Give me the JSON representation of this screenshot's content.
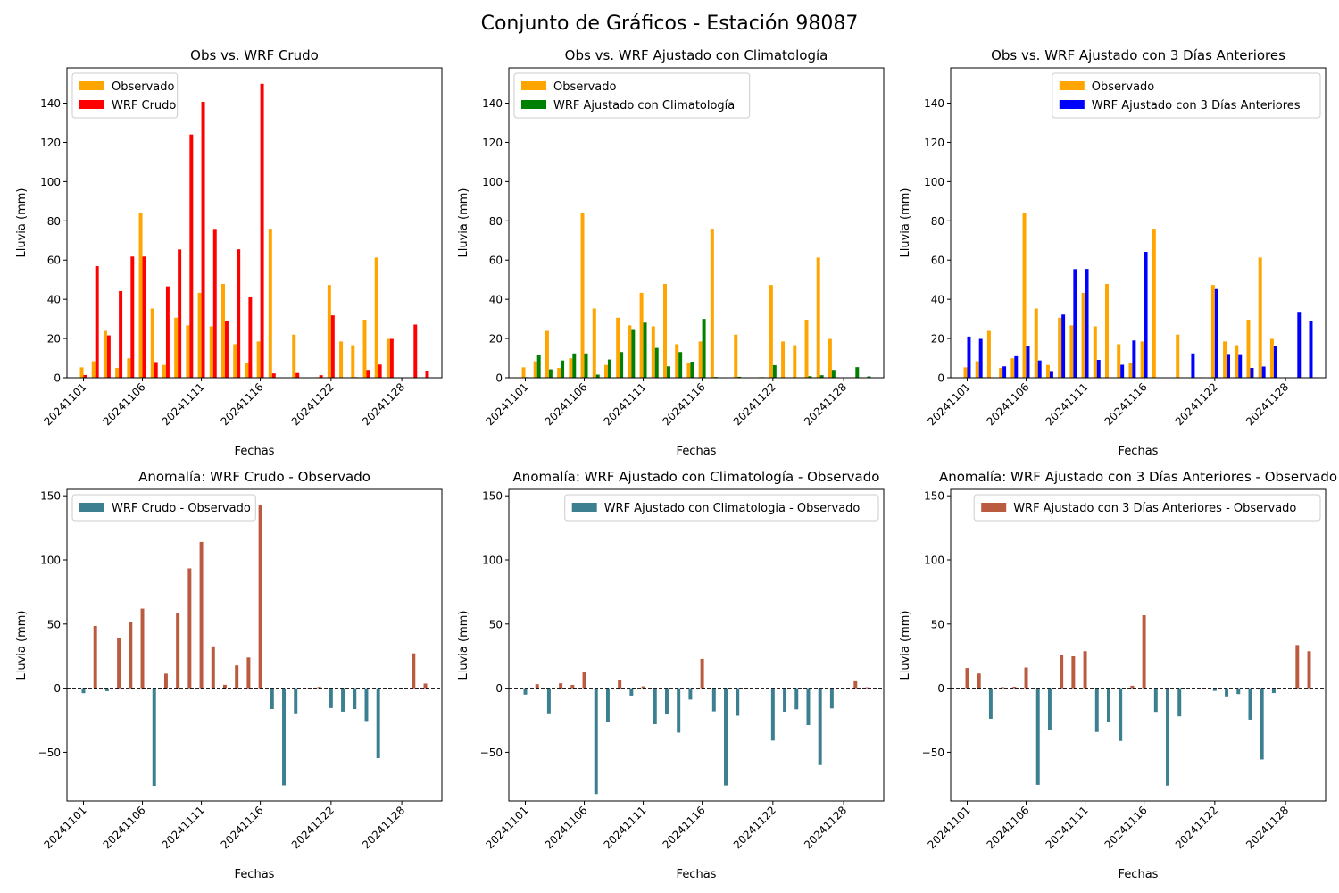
{
  "figure": {
    "suptitle": "Conjunto de Gráficos - Estación 98087"
  },
  "colors": {
    "observed": "#FFA500",
    "wrf_raw": "#FF0000",
    "wrf_clim": "#008000",
    "wrf_3d": "#0000FF",
    "anom_pos": "#BA5B3F",
    "anom_neg": "#3C7F91",
    "legend_anom_1": "#3C7F91",
    "legend_anom_2": "#3C7F91",
    "legend_anom_3": "#BA5B3F"
  },
  "chart_data": [
    {
      "type": "bar",
      "title": "Obs vs. WRF Crudo",
      "xlabel": "Fechas",
      "ylabel": "Lluvia (mm)",
      "ylim": [
        0,
        158
      ],
      "yticks": [
        0,
        20,
        40,
        60,
        80,
        100,
        120,
        140
      ],
      "xticks": [
        "20241101",
        "20241106",
        "20241111",
        "20241116",
        "20241122",
        "20241128"
      ],
      "legend": "top-left",
      "categories": [
        "20241101",
        "20241102",
        "20241103",
        "20241104",
        "20241105",
        "20241106",
        "20241107",
        "20241108",
        "20241109",
        "20241110",
        "20241111",
        "20241112",
        "20241113",
        "20241114",
        "20241115",
        "20241116",
        "20241117",
        "20241118",
        "20241119",
        "20241120",
        "20241121",
        "20241122",
        "20241123",
        "20241124",
        "20241125",
        "20241126",
        "20241127",
        "20241128",
        "20241129",
        "20241130"
      ],
      "series": [
        {
          "name": "Observado",
          "color_key": "observed",
          "values": [
            5.3,
            8.4,
            23.9,
            5.0,
            9.9,
            84.2,
            35.3,
            6.5,
            30.6,
            26.7,
            43.3,
            26.2,
            47.8,
            17.1,
            7.4,
            18.5,
            76.0,
            0,
            22.0,
            0,
            0.3,
            47.3,
            18.5,
            16.6,
            29.6,
            61.3,
            19.8,
            0,
            0,
            0
          ]
        },
        {
          "name": "WRF Crudo",
          "color_key": "wrf_raw",
          "values": [
            1.4,
            56.9,
            21.6,
            44.2,
            61.8,
            61.8,
            8.0,
            46.6,
            65.4,
            124.0,
            140.7,
            75.9,
            28.8,
            65.5,
            41.0,
            149.9,
            2.2,
            0.2,
            2.4,
            0.2,
            1.3,
            31.8,
            0.2,
            0.3,
            4.0,
            6.7,
            19.8,
            0.2,
            27.1,
            3.6
          ]
        }
      ]
    },
    {
      "type": "bar",
      "title": "Obs vs. WRF Ajustado con Climatología",
      "xlabel": "Fechas",
      "ylabel": "Lluvia (mm)",
      "ylim": [
        0,
        158
      ],
      "yticks": [
        0,
        20,
        40,
        60,
        80,
        100,
        120,
        140
      ],
      "xticks": [
        "20241101",
        "20241106",
        "20241111",
        "20241116",
        "20241122",
        "20241128"
      ],
      "legend": "top-left",
      "categories": [
        "20241101",
        "20241102",
        "20241103",
        "20241104",
        "20241105",
        "20241106",
        "20241107",
        "20241108",
        "20241109",
        "20241110",
        "20241111",
        "20241112",
        "20241113",
        "20241114",
        "20241115",
        "20241116",
        "20241117",
        "20241118",
        "20241119",
        "20241120",
        "20241121",
        "20241122",
        "20241123",
        "20241124",
        "20241125",
        "20241126",
        "20241127",
        "20241128",
        "20241129",
        "20241130"
      ],
      "series": [
        {
          "name": "Observado",
          "color_key": "observed",
          "values": [
            5.3,
            8.4,
            23.9,
            5.0,
            9.9,
            84.2,
            35.3,
            6.5,
            30.6,
            26.7,
            43.3,
            26.2,
            47.8,
            17.1,
            7.4,
            18.5,
            76.0,
            0,
            22.0,
            0,
            0.3,
            47.3,
            18.5,
            16.6,
            29.6,
            61.3,
            19.8,
            0,
            0,
            0
          ]
        },
        {
          "name": "WRF Ajustado con Climatología",
          "color_key": "wrf_clim",
          "values": [
            0.3,
            11.5,
            4.3,
            8.8,
            12.4,
            12.4,
            1.6,
            9.3,
            13.1,
            24.8,
            28.1,
            15.2,
            5.8,
            13.1,
            8.2,
            30.0,
            0.4,
            0.1,
            0.5,
            0.1,
            0.3,
            6.4,
            0.1,
            0.1,
            0.8,
            1.3,
            4.0,
            0.1,
            5.4,
            0.7
          ]
        }
      ]
    },
    {
      "type": "bar",
      "title": "Obs vs. WRF Ajustado con 3 Días Anteriores",
      "xlabel": "Fechas",
      "ylabel": "Lluvia (mm)",
      "ylim": [
        0,
        158
      ],
      "yticks": [
        0,
        20,
        40,
        60,
        80,
        100,
        120,
        140
      ],
      "xticks": [
        "20241101",
        "20241106",
        "20241111",
        "20241116",
        "20241122",
        "20241128"
      ],
      "legend": "top-right",
      "categories": [
        "20241101",
        "20241102",
        "20241103",
        "20241104",
        "20241105",
        "20241106",
        "20241107",
        "20241108",
        "20241109",
        "20241110",
        "20241111",
        "20241112",
        "20241113",
        "20241114",
        "20241115",
        "20241116",
        "20241117",
        "20241118",
        "20241119",
        "20241120",
        "20241121",
        "20241122",
        "20241123",
        "20241124",
        "20241125",
        "20241126",
        "20241127",
        "20241128",
        "20241129",
        "20241130"
      ],
      "series": [
        {
          "name": "Observado",
          "color_key": "observed",
          "values": [
            5.3,
            8.4,
            23.9,
            5.0,
            9.9,
            84.2,
            35.3,
            6.5,
            30.6,
            26.7,
            43.3,
            26.2,
            47.8,
            17.1,
            7.4,
            18.5,
            76.0,
            0,
            22.0,
            0,
            0.3,
            47.3,
            18.5,
            16.6,
            29.6,
            61.3,
            19.8,
            0,
            0,
            0
          ]
        },
        {
          "name": "WRF Ajustado con 3 Días Anteriores",
          "color_key": "wrf_3d",
          "values": [
            21.0,
            19.8,
            0,
            5.8,
            11.0,
            16.1,
            8.8,
            3.0,
            32.2,
            55.4,
            55.5,
            9.1,
            0,
            6.6,
            19.0,
            64.2,
            0,
            0,
            0,
            12.4,
            0,
            45.2,
            12.1,
            12.0,
            5.0,
            5.7,
            16.0,
            0,
            33.6,
            28.8
          ]
        }
      ]
    },
    {
      "type": "bar",
      "title": "Anomalía: WRF Crudo - Observado",
      "xlabel": "Fechas",
      "ylabel": "Lluvia (mm)",
      "ylim": [
        -88,
        155
      ],
      "yticks": [
        -50,
        0,
        50,
        100,
        150
      ],
      "xticks": [
        "20241101",
        "20241106",
        "20241111",
        "20241116",
        "20241122",
        "20241128"
      ],
      "legend": "top-left",
      "categories": [
        "20241101",
        "20241102",
        "20241103",
        "20241104",
        "20241105",
        "20241106",
        "20241107",
        "20241108",
        "20241109",
        "20241110",
        "20241111",
        "20241112",
        "20241113",
        "20241114",
        "20241115",
        "20241116",
        "20241117",
        "20241118",
        "20241119",
        "20241120",
        "20241121",
        "20241122",
        "20241123",
        "20241124",
        "20241125",
        "20241126",
        "20241127",
        "20241128",
        "20241129",
        "20241130"
      ],
      "series": [
        {
          "name": "WRF Crudo - Observado",
          "values": [
            -3.9,
            48.5,
            -2.3,
            39.2,
            51.9,
            62.0,
            -76.2,
            11.3,
            58.9,
            93.4,
            114.0,
            32.6,
            2.6,
            17.7,
            23.9,
            142.5,
            -16.3,
            -75.8,
            -19.6,
            0.2,
            1.0,
            -15.5,
            -18.3,
            -16.3,
            -25.6,
            -54.6,
            0,
            0.2,
            27.1,
            3.6
          ]
        }
      ]
    },
    {
      "type": "bar",
      "title": "Anomalía: WRF Ajustado con Climatología - Observado",
      "xlabel": "Fechas",
      "ylabel": "Lluvia (mm)",
      "ylim": [
        -88,
        155
      ],
      "yticks": [
        -50,
        0,
        50,
        100,
        150
      ],
      "xticks": [
        "20241101",
        "20241106",
        "20241111",
        "20241116",
        "20241122",
        "20241128"
      ],
      "legend": "top-right",
      "categories": [
        "20241101",
        "20241102",
        "20241103",
        "20241104",
        "20241105",
        "20241106",
        "20241107",
        "20241108",
        "20241109",
        "20241110",
        "20241111",
        "20241112",
        "20241113",
        "20241114",
        "20241115",
        "20241116",
        "20241117",
        "20241118",
        "20241119",
        "20241120",
        "20241121",
        "20241122",
        "20241123",
        "20241124",
        "20241125",
        "20241126",
        "20241127",
        "20241128",
        "20241129",
        "20241130"
      ],
      "series": [
        {
          "name": "WRF Ajustado con Climatologia - Observado",
          "values": [
            -5.0,
            3.1,
            -19.6,
            3.8,
            2.5,
            12.4,
            -82.6,
            -26.0,
            6.6,
            -5.8,
            1.4,
            -28.1,
            -20.4,
            -34.7,
            -8.9,
            22.8,
            -18.1,
            -75.9,
            -21.5,
            0.1,
            0,
            -40.9,
            -18.4,
            -16.5,
            -28.8,
            -60.0,
            -15.8,
            0.1,
            5.4,
            0.7
          ]
        }
      ]
    },
    {
      "type": "bar",
      "title": "Anomalía: WRF Ajustado con 3 Días Anteriores - Observado",
      "xlabel": "Fechas",
      "ylabel": "Lluvia (mm)",
      "ylim": [
        -88,
        155
      ],
      "yticks": [
        -50,
        0,
        50,
        100,
        150
      ],
      "xticks": [
        "20241101",
        "20241106",
        "20241111",
        "20241116",
        "20241122",
        "20241128"
      ],
      "legend": "top-right",
      "categories": [
        "20241101",
        "20241102",
        "20241103",
        "20241104",
        "20241105",
        "20241106",
        "20241107",
        "20241108",
        "20241109",
        "20241110",
        "20241111",
        "20241112",
        "20241113",
        "20241114",
        "20241115",
        "20241116",
        "20241117",
        "20241118",
        "20241119",
        "20241120",
        "20241121",
        "20241122",
        "20241123",
        "20241124",
        "20241125",
        "20241126",
        "20241127",
        "20241128",
        "20241129",
        "20241130"
      ],
      "series": [
        {
          "name": "WRF Ajustado con 3 Días Anteriores - Observado",
          "values": [
            15.7,
            11.4,
            -23.9,
            0.8,
            1.1,
            16.1,
            -75.4,
            -32.3,
            25.7,
            24.8,
            28.8,
            -34.2,
            -26.2,
            -41.2,
            1.9,
            56.8,
            -18.5,
            -76.0,
            -22.0,
            0,
            0,
            -2.1,
            -6.4,
            -4.6,
            -24.6,
            -55.6,
            -3.8,
            0,
            33.6,
            28.8
          ]
        }
      ]
    }
  ]
}
